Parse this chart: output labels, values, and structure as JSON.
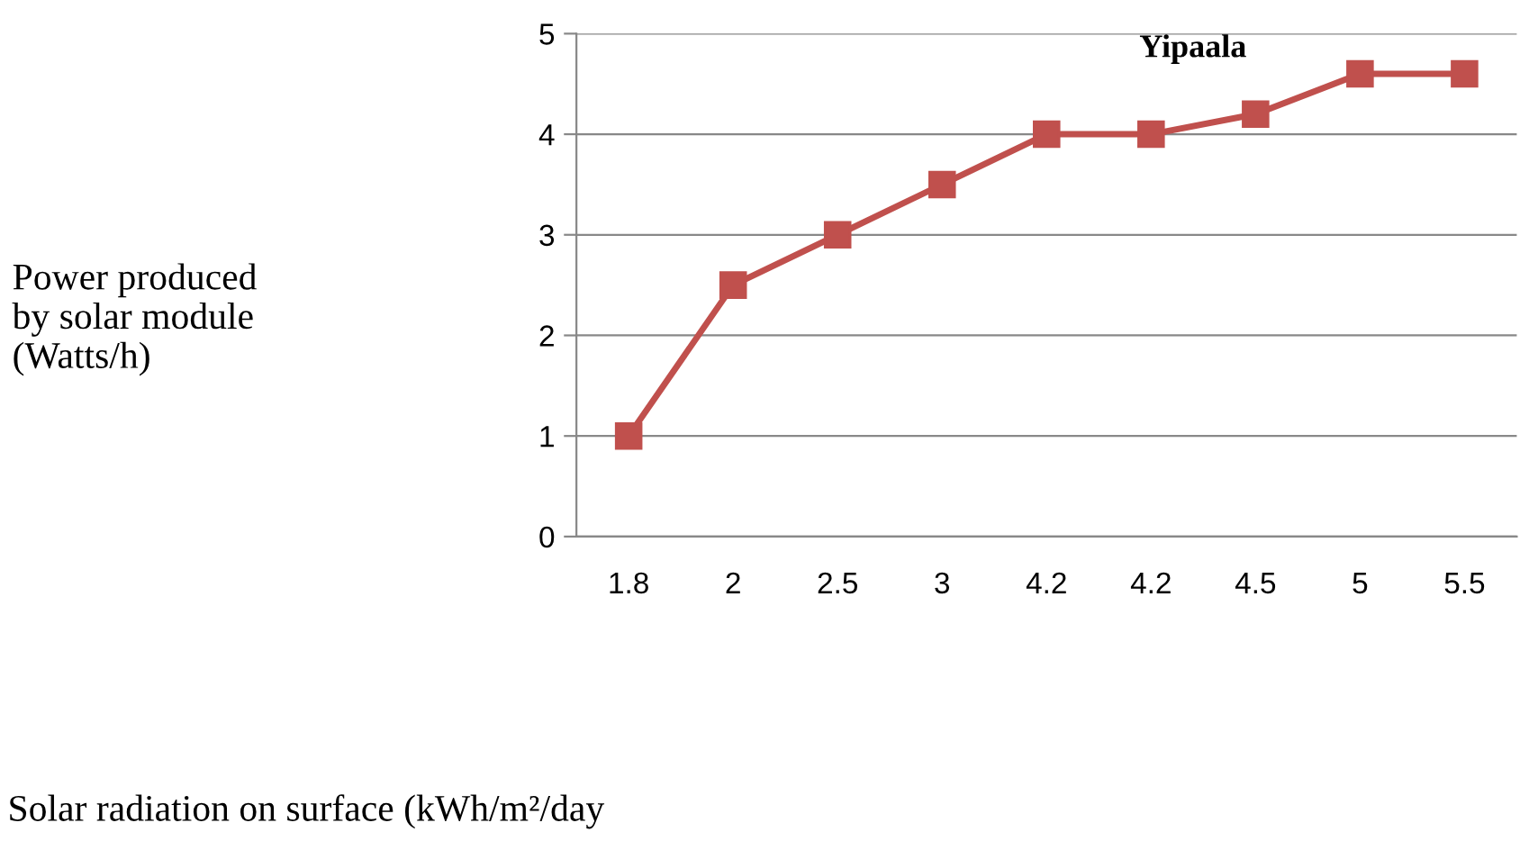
{
  "chart_data": {
    "type": "line",
    "annotations": [
      "Power produced\nby solar module\n(Watts/h)",
      "Solar radiation on surface (kWh/m²/day"
    ],
    "categories": [
      "1.8",
      "2",
      "2.5",
      "3",
      "4.2",
      "4.2",
      "4.5",
      "5",
      "5.5"
    ],
    "series": [
      {
        "name": "Yipaala",
        "color": "#c0504d",
        "values": [
          1,
          2.5,
          3,
          3.5,
          4,
          4,
          4.2,
          4.6,
          4.6
        ]
      }
    ],
    "ylim": [
      0,
      5
    ],
    "yticks": [
      0,
      1,
      2,
      3,
      4,
      5
    ],
    "grid": "y",
    "marker": "square",
    "line_style": "solid",
    "legend": false
  }
}
